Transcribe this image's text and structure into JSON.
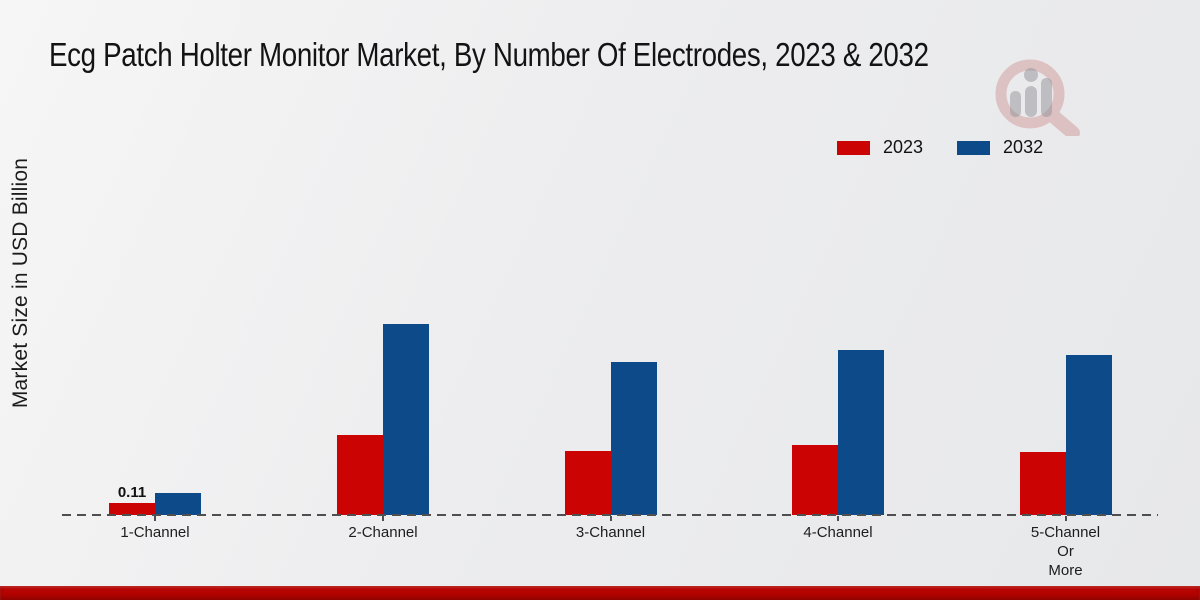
{
  "title": "Ecg Patch Holter Monitor Market, By Number Of Electrodes, 2023 & 2032",
  "colors": {
    "series_2023": "#cb0303",
    "series_2032": "#0d4a8a",
    "bottom_strip": "#b50401"
  },
  "branding": {
    "watermark_icon": "magnifier-bar-chart-logo"
  },
  "chart_data": {
    "type": "bar",
    "title": "Ecg Patch Holter Monitor Market, By Number Of Electrodes, 2023 & 2032",
    "ylabel": "Market Size in USD Billion",
    "xlabel": "",
    "categories": [
      "1-Channel",
      "2-Channel",
      "3-Channel",
      "4-Channel",
      "5-Channel\nOr\nMore"
    ],
    "series": [
      {
        "name": "2023",
        "color": "#cb0303",
        "values": [
          0.11,
          0.73,
          0.59,
          0.64,
          0.58
        ]
      },
      {
        "name": "2032",
        "color": "#0d4a8a",
        "values": [
          0.2,
          1.75,
          1.4,
          1.51,
          1.47
        ]
      }
    ],
    "annotations": [
      {
        "text": "0.11",
        "series_index": 0,
        "category_index": 0
      }
    ],
    "legend_position": "top-right",
    "grid": false,
    "baseline_style": "dashed",
    "ylim": [
      0,
      2.0
    ]
  }
}
